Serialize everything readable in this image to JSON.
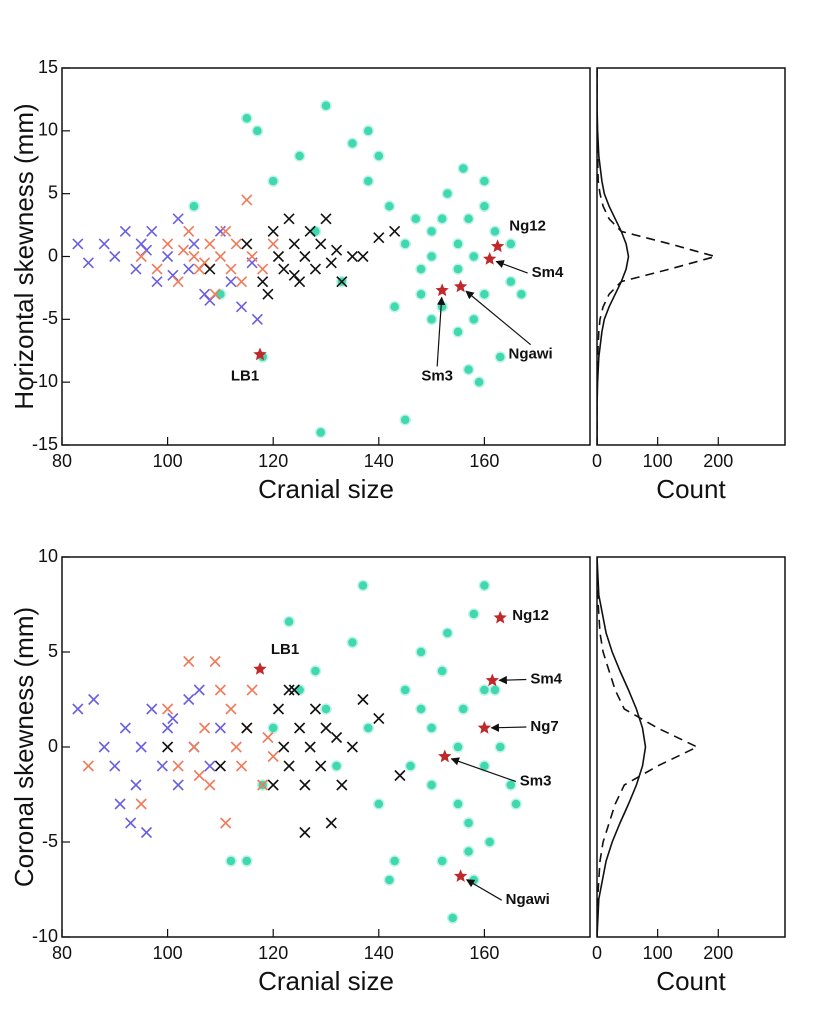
{
  "chart_data": [
    {
      "type": "scatter",
      "xlabel": "Cranial size",
      "ylabel": "Horizontal skewness (mm)",
      "xlim": [
        80,
        180
      ],
      "ylim": [
        -15,
        15
      ],
      "xticks": [
        80,
        100,
        120,
        140,
        160
      ],
      "yticks": [
        -15,
        -10,
        -5,
        0,
        5,
        10,
        15
      ],
      "series": [
        {
          "marker": "circle",
          "color": "#3fd8b0",
          "x": [
            105,
            110,
            115,
            117,
            120,
            125,
            128,
            130,
            133,
            135,
            138,
            140,
            142,
            145,
            147,
            148,
            150,
            150,
            152,
            153,
            155,
            155,
            156,
            157,
            158,
            158,
            160,
            160,
            162,
            163,
            165,
            165,
            167,
            145,
            150,
            155,
            160,
            152,
            148,
            157,
            129,
            118,
            138,
            143,
            159
          ],
          "y": [
            4,
            -3,
            11,
            10,
            6,
            8,
            2,
            12,
            -2,
            9,
            6,
            8,
            4,
            1,
            3,
            -1,
            2,
            0,
            -4,
            5,
            1,
            -1,
            7,
            3,
            0,
            -5,
            4,
            -3,
            2,
            -8,
            1,
            -2,
            -3,
            -13,
            -5,
            -6,
            6,
            3,
            -3,
            -9,
            -14,
            -8,
            10,
            -4,
            -10
          ]
        },
        {
          "marker": "cross",
          "color": "#6a5fe0",
          "x": [
            83,
            85,
            88,
            90,
            92,
            94,
            95,
            97,
            98,
            100,
            102,
            104,
            105,
            107,
            110,
            112,
            114,
            116,
            117,
            96,
            101,
            108
          ],
          "y": [
            1,
            -0.5,
            1,
            0,
            2,
            -1,
            1,
            2,
            -2,
            0,
            3,
            -1,
            1,
            -3,
            2,
            -2,
            -4,
            -0.5,
            -5,
            0.5,
            -1.5,
            -3.5
          ]
        },
        {
          "marker": "cross",
          "color": "#f07a5a",
          "x": [
            95,
            98,
            100,
            102,
            104,
            105,
            106,
            108,
            109,
            110,
            111,
            112,
            113,
            114,
            115,
            116,
            118,
            120,
            107,
            103
          ],
          "y": [
            0,
            -1,
            1,
            -2,
            2,
            0,
            -1,
            1,
            -3,
            0,
            2,
            -1,
            1,
            -2,
            4.5,
            0,
            -1,
            1,
            -0.5,
            0.5
          ]
        },
        {
          "marker": "cross",
          "color": "#111111",
          "x": [
            108,
            115,
            118,
            120,
            121,
            122,
            123,
            124,
            125,
            126,
            127,
            128,
            129,
            130,
            131,
            132,
            133,
            135,
            137,
            140,
            143,
            119,
            124
          ],
          "y": [
            -1,
            1,
            -2,
            2,
            0,
            -1,
            3,
            1,
            -2,
            0,
            2,
            -1,
            1,
            3,
            -0.5,
            0.5,
            -2,
            0,
            0,
            1.5,
            2,
            -3,
            -1.5
          ]
        },
        {
          "marker": "star",
          "color": "#c0282a",
          "x": [
            117.5,
            162.5,
            161,
            152,
            155.5
          ],
          "y": [
            -7.8,
            0.8,
            -0.2,
            -2.7,
            -2.4
          ],
          "labels": [
            "LB1",
            "Ng12",
            "Sm4",
            "Sm3",
            "Ngawi"
          ]
        }
      ]
    },
    {
      "type": "line",
      "xlabel": "Count",
      "xlim": [
        0,
        310
      ],
      "ylim": [
        -15,
        15
      ],
      "xticks": [
        0,
        100,
        200
      ],
      "series": [
        {
          "color": "#111111",
          "dash": false,
          "x": [
            0,
            0,
            1,
            3,
            8,
            12,
            20,
            30,
            40,
            48,
            52,
            48,
            40,
            30,
            20,
            12,
            8,
            3,
            1,
            0,
            0
          ],
          "y": [
            -15,
            -12,
            -10,
            -8,
            -6,
            -5,
            -4,
            -3,
            -2,
            -1,
            0,
            1,
            2,
            3,
            4,
            5,
            6,
            8,
            10,
            12,
            15
          ]
        },
        {
          "color": "#111111",
          "dash": true,
          "x": [
            0,
            0,
            0,
            1,
            3,
            5,
            10,
            20,
            40,
            120,
            195,
            120,
            40,
            20,
            10,
            5,
            2,
            1,
            0,
            0,
            0
          ],
          "y": [
            -15,
            -12,
            -10,
            -8,
            -6,
            -5,
            -4,
            -3,
            -2,
            -1,
            0,
            1,
            2,
            3,
            4,
            5,
            6,
            8,
            10,
            12,
            15
          ]
        }
      ]
    },
    {
      "type": "scatter",
      "xlabel": "Cranial size",
      "ylabel": "Coronal skewness (mm)",
      "xlim": [
        80,
        180
      ],
      "ylim": [
        -10,
        10
      ],
      "xticks": [
        80,
        100,
        120,
        140,
        160
      ],
      "yticks": [
        -10,
        -5,
        0,
        5,
        10
      ],
      "series": [
        {
          "marker": "circle",
          "color": "#3fd8b0",
          "x": [
            112,
            115,
            118,
            120,
            123,
            125,
            128,
            130,
            132,
            135,
            137,
            138,
            140,
            142,
            145,
            146,
            148,
            150,
            150,
            152,
            153,
            155,
            155,
            156,
            157,
            158,
            158,
            160,
            160,
            161,
            162,
            163,
            165,
            166,
            143,
            148,
            152,
            160,
            157,
            154
          ],
          "y": [
            -6,
            -6,
            -2,
            1,
            6.6,
            3,
            4,
            2,
            -1,
            5.5,
            8.5,
            1,
            -3,
            -7,
            3,
            -1,
            5,
            1,
            -2,
            4,
            6,
            0,
            -3,
            2,
            -4,
            -7,
            7,
            8.5,
            -1,
            -5,
            3,
            0,
            -2,
            -3,
            -6,
            2,
            -6,
            3,
            -5.5,
            -9
          ]
        },
        {
          "marker": "cross",
          "color": "#6a5fe0",
          "x": [
            83,
            86,
            88,
            90,
            92,
            93,
            95,
            96,
            97,
            99,
            100,
            102,
            104,
            105,
            106,
            108,
            110,
            91,
            94,
            101
          ],
          "y": [
            2,
            2.5,
            0,
            -1,
            1,
            -4,
            0,
            -4.5,
            2,
            -1,
            1,
            -2,
            2.5,
            0,
            3,
            -1,
            1,
            -3,
            -2,
            1.5
          ]
        },
        {
          "marker": "cross",
          "color": "#f07a5a",
          "x": [
            85,
            95,
            100,
            102,
            104,
            105,
            107,
            108,
            110,
            111,
            112,
            113,
            114,
            115,
            116,
            118,
            119,
            120,
            109,
            106
          ],
          "y": [
            -1,
            -3,
            2,
            -1,
            4.5,
            0,
            1,
            -2,
            3,
            -4,
            2,
            0,
            -1,
            1,
            3,
            -2,
            0.5,
            -0.5,
            4.5,
            -1.5
          ]
        },
        {
          "marker": "cross",
          "color": "#111111",
          "x": [
            100,
            110,
            115,
            120,
            121,
            122,
            123,
            124,
            125,
            126,
            127,
            128,
            129,
            130,
            131,
            132,
            133,
            135,
            137,
            140,
            144,
            126,
            123
          ],
          "y": [
            0,
            -1,
            1,
            -2,
            2,
            0,
            -1,
            3,
            1,
            -2,
            0,
            2,
            -1,
            1,
            -4,
            0.5,
            -2,
            0,
            2.5,
            1.5,
            -1.5,
            -4.5,
            3
          ]
        },
        {
          "marker": "star",
          "color": "#c0282a",
          "x": [
            117.5,
            163,
            161.5,
            160,
            152.5,
            155.5
          ],
          "y": [
            4.1,
            6.8,
            3.5,
            1,
            -0.5,
            -6.8
          ],
          "labels": [
            "LB1",
            "Ng12",
            "Sm4",
            "Ng7",
            "Sm3",
            "Ngawi"
          ]
        }
      ]
    },
    {
      "type": "line",
      "xlabel": "Count",
      "xlim": [
        0,
        310
      ],
      "ylim": [
        -10,
        10
      ],
      "xticks": [
        0,
        100,
        200
      ],
      "series": [
        {
          "color": "#111111",
          "dash": false,
          "x": [
            0,
            3,
            15,
            25,
            38,
            52,
            65,
            75,
            80,
            75,
            65,
            52,
            38,
            25,
            15,
            3,
            0
          ],
          "y": [
            -10,
            -8,
            -6,
            -5,
            -4,
            -3,
            -2,
            -1,
            0,
            1,
            2,
            3,
            4,
            5,
            6,
            8,
            10
          ]
        },
        {
          "color": "#111111",
          "dash": true,
          "x": [
            0,
            1,
            5,
            10,
            20,
            30,
            45,
            100,
            165,
            100,
            45,
            30,
            20,
            10,
            5,
            1,
            0
          ],
          "y": [
            -10,
            -8,
            -6,
            -5,
            -4,
            -3,
            -2,
            -1,
            0,
            1,
            2,
            3,
            4,
            5,
            6,
            8,
            10
          ]
        }
      ]
    }
  ]
}
